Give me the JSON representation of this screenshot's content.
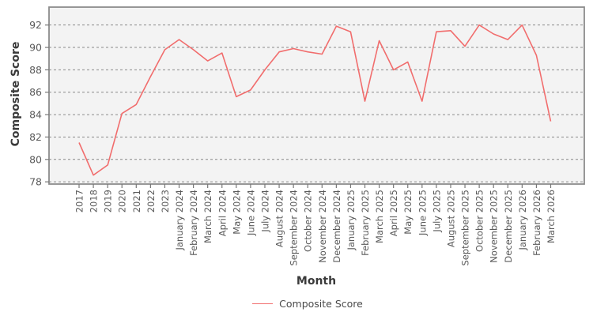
{
  "chart_data": {
    "type": "line",
    "title": "",
    "xlabel": "Month",
    "ylabel": "Composite Score",
    "categories": [
      "2017",
      "2018",
      "2019",
      "2020",
      "2021",
      "2022",
      "2023",
      "January 2024",
      "February 2024",
      "March 2024",
      "April 2024",
      "May 2024",
      "June 2024",
      "July 2024",
      "August 2024",
      "September 2024",
      "October 2024",
      "November 2024",
      "December 2024",
      "January 2025",
      "February 2025",
      "March 2025",
      "April 2025",
      "May 2025",
      "June 2025",
      "July 2025",
      "August 2025",
      "September 2025",
      "October 2025",
      "November 2025",
      "December 2025",
      "January 2026",
      "February 2026",
      "March 2026"
    ],
    "series": [
      {
        "name": "Composite Score",
        "color": "#f16d6d",
        "values": [
          81.5,
          78.6,
          79.5,
          84.1,
          84.9,
          87.4,
          89.8,
          90.7,
          89.8,
          88.8,
          89.5,
          85.6,
          86.2,
          88.0,
          89.6,
          89.9,
          89.6,
          89.4,
          91.9,
          91.4,
          85.2,
          90.6,
          88.0,
          88.7,
          85.2,
          91.4,
          91.5,
          90.1,
          92.0,
          91.2,
          90.7,
          92.0,
          89.3,
          83.4
        ]
      }
    ],
    "y_ticks": [
      78,
      80,
      82,
      84,
      86,
      88,
      90,
      92
    ],
    "ylim": [
      77.8,
      93.6
    ],
    "grid": "horizontal dashed",
    "legend_position": "bottom-center",
    "colors": {
      "plot_background": "#f3f3f3",
      "grid_line": "#8a8a8a",
      "plot_border": "#8c8c8c",
      "tick_label": "#5a5a5a",
      "axis_title": "#3a3a3a"
    }
  },
  "legend": {
    "label": "Composite Score"
  }
}
